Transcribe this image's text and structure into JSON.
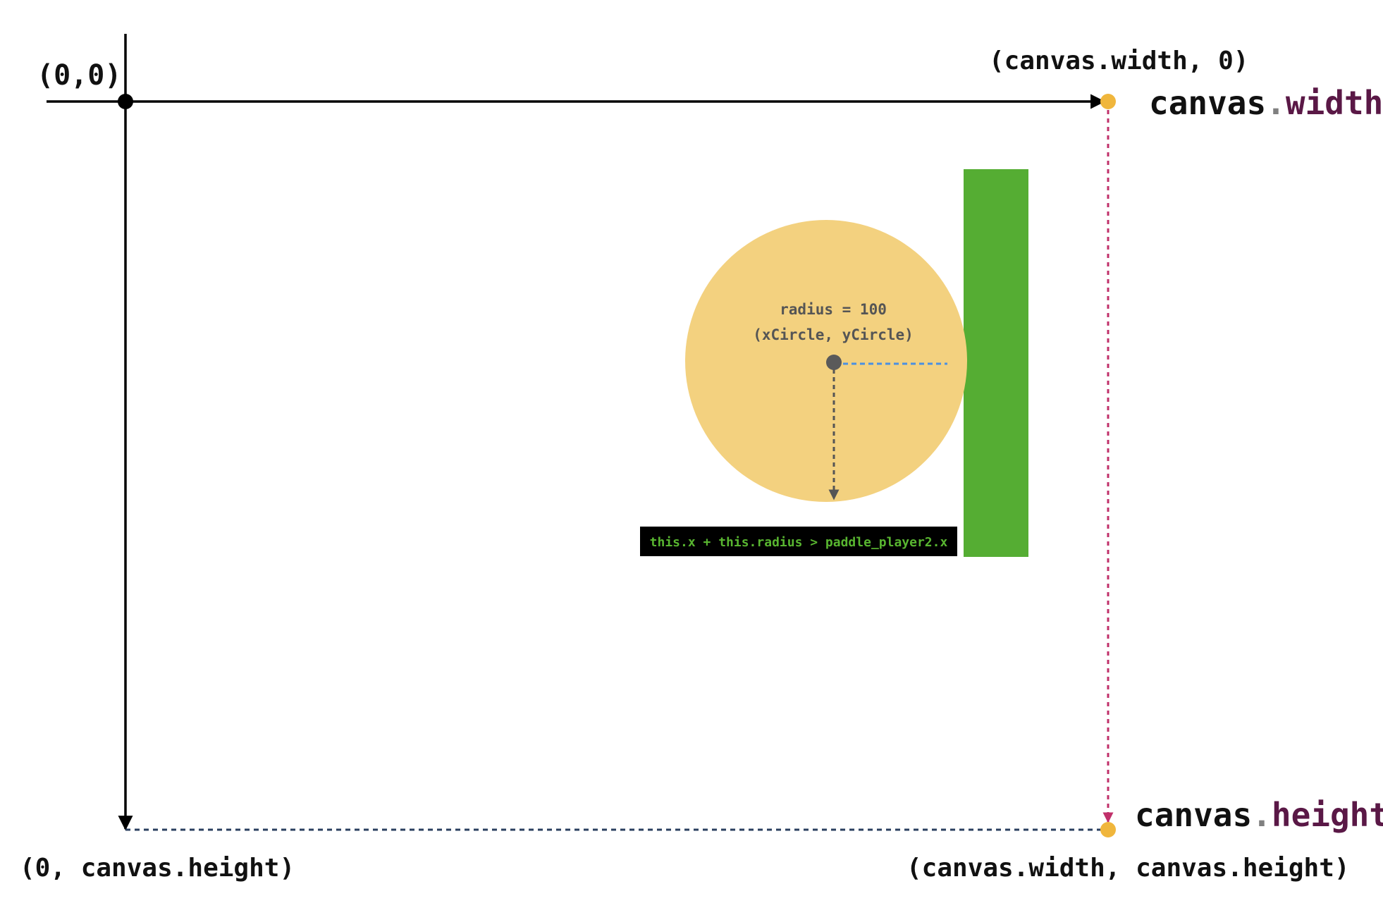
{
  "labels": {
    "origin": "(0,0)",
    "top_right": "(canvas.width, 0)",
    "bottom_left": "(0, canvas.height)",
    "bottom_right": "(canvas.width, canvas.height)",
    "width_obj": "canvas",
    "width_dot": ".",
    "width_prop": "width",
    "height_obj": "canvas",
    "height_dot": ".",
    "height_prop": "height",
    "radius": "radius = 100",
    "center": "(xCircle, yCircle)",
    "condition": "this.x + this.radius > paddle_player2.x"
  },
  "colors": {
    "axis": "#000000",
    "ball": "#f3d17f",
    "ball_center": "#5a5a5a",
    "paddle": "#55ad33",
    "corner_dot": "#f0b63c",
    "canvas_edge_right": "#c0306a",
    "canvas_edge_bottom": "#2a3f5f",
    "radius_line_horizontal": "#4a90e2",
    "radius_line_vertical": "#555555",
    "keyword_purple": "#5a1846",
    "dot_gray": "#808080",
    "condition_bg": "#000000",
    "condition_text": "#58b530"
  }
}
